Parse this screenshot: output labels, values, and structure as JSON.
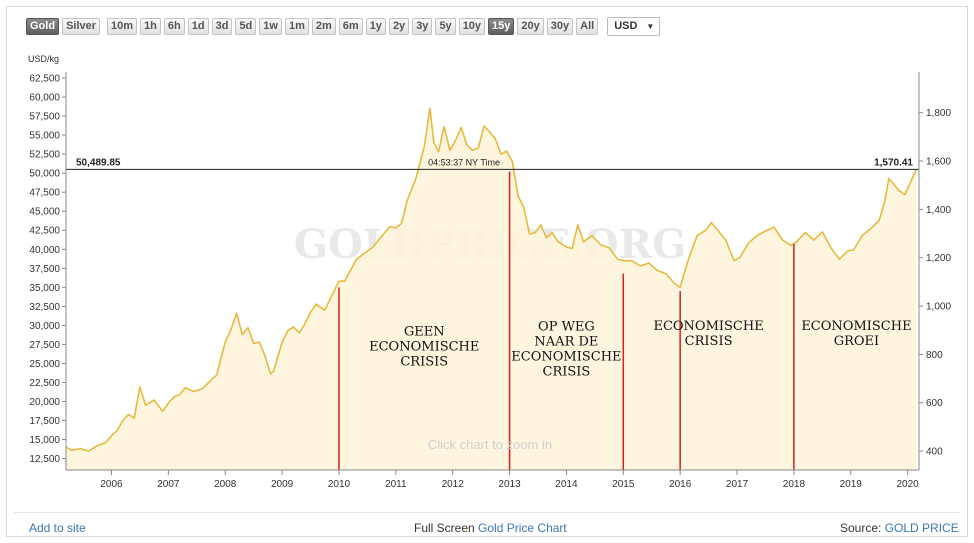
{
  "toolbar": {
    "metals": [
      {
        "label": "Gold",
        "active": true
      },
      {
        "label": "Silver",
        "active": false
      }
    ],
    "ranges": [
      {
        "label": "10m",
        "active": false
      },
      {
        "label": "1h",
        "active": false
      },
      {
        "label": "6h",
        "active": false
      },
      {
        "label": "1d",
        "active": false
      },
      {
        "label": "3d",
        "active": false
      },
      {
        "label": "5d",
        "active": false
      },
      {
        "label": "1w",
        "active": false
      },
      {
        "label": "1m",
        "active": false
      },
      {
        "label": "2m",
        "active": false
      },
      {
        "label": "6m",
        "active": false
      },
      {
        "label": "1y",
        "active": false
      },
      {
        "label": "2y",
        "active": false
      },
      {
        "label": "3y",
        "active": false
      },
      {
        "label": "5y",
        "active": false
      },
      {
        "label": "10y",
        "active": false
      },
      {
        "label": "15y",
        "active": true
      },
      {
        "label": "20y",
        "active": false
      },
      {
        "label": "30y",
        "active": false
      },
      {
        "label": "All",
        "active": false
      }
    ],
    "currency": "USD"
  },
  "footer": {
    "add_to_site": "Add to site",
    "full_screen": "Full Screen",
    "chart_link": "Gold Price Chart",
    "source_label": "Source:",
    "source_link": "GOLD PRICE"
  },
  "chart_data": {
    "type": "area",
    "ylabel": "USD/kg",
    "watermark": "GOLDPRICE.ORG",
    "hint": "Click chart to zoom in",
    "line_color": "#e8b93d",
    "fill_color": "#fdf3d8",
    "marker_color": "#d81f1f",
    "xlim": [
      2005.2,
      2020.2
    ],
    "ylim_left": [
      11000,
      62500
    ],
    "ylim_right": [
      321.5,
      1943.6
    ],
    "x_ticks": [
      2006,
      2007,
      2008,
      2009,
      2010,
      2011,
      2012,
      2013,
      2014,
      2015,
      2016,
      2017,
      2018,
      2019,
      2020
    ],
    "left_ticks": [
      "12,500",
      "15,000",
      "17,500",
      "20,000",
      "22,500",
      "25,000",
      "27,500",
      "30,000",
      "32,500",
      "35,000",
      "37,500",
      "40,000",
      "42,500",
      "45,000",
      "47,500",
      "50,000",
      "52,500",
      "55,000",
      "57,500",
      "60,000",
      "62,500"
    ],
    "left_tick_values": [
      12500,
      15000,
      17500,
      20000,
      22500,
      25000,
      27500,
      30000,
      32500,
      35000,
      37500,
      40000,
      42500,
      45000,
      47500,
      50000,
      52500,
      55000,
      57500,
      60000,
      62500
    ],
    "right_ticks": [
      "400",
      "600",
      "800",
      "1,000",
      "1,200",
      "1,400",
      "1,600",
      "1,800"
    ],
    "right_tick_values": [
      400,
      600,
      800,
      1000,
      1200,
      1400,
      1600,
      1800
    ],
    "crosshair": {
      "value": 50490,
      "left_label": "50,489.85",
      "right_label": "1,570.41",
      "time_label": "04:53:37 NY Time",
      "time_x": 2012.2
    },
    "markers": [
      {
        "x": 2010.0,
        "y": 35000
      },
      {
        "x": 2013.0,
        "y": 50200
      },
      {
        "x": 2015.0,
        "y": 36800
      },
      {
        "x": 2016.0,
        "y": 34500
      },
      {
        "x": 2018.0,
        "y": 40700
      }
    ],
    "annotations": [
      {
        "lines": [
          "GEEN",
          "ECONOMISCHE",
          "CRISIS"
        ],
        "x": 2011.5,
        "y": 28700
      },
      {
        "lines": [
          "OP WEG",
          "NAAR DE",
          "ECONOMISCHE",
          "CRISIS"
        ],
        "x": 2014.0,
        "y": 29300
      },
      {
        "lines": [
          "ECONOMISCHE",
          "CRISIS"
        ],
        "x": 2016.5,
        "y": 29400
      },
      {
        "lines": [
          "ECONOMISCHE",
          "GROEI"
        ],
        "x": 2019.1,
        "y": 29400
      }
    ],
    "series": [
      {
        "x": [
          2005.2,
          2005.3,
          2005.45,
          2005.6,
          2005.75,
          2005.9,
          2006.0,
          2006.1,
          2006.2,
          2006.3,
          2006.4,
          2006.5,
          2006.6,
          2006.75,
          2006.9,
          2007.0,
          2007.1,
          2007.2,
          2007.3,
          2007.45,
          2007.6,
          2007.75,
          2007.85,
          2008.0,
          2008.1,
          2008.2,
          2008.3,
          2008.4,
          2008.5,
          2008.6,
          2008.7,
          2008.8,
          2008.85,
          2009.0,
          2009.1,
          2009.2,
          2009.3,
          2009.4,
          2009.5,
          2009.6,
          2009.75,
          2009.9,
          2010.0,
          2010.1,
          2010.2,
          2010.3,
          2010.45,
          2010.6,
          2010.75,
          2010.9,
          2011.0,
          2011.1,
          2011.2,
          2011.35,
          2011.5,
          2011.6,
          2011.67,
          2011.75,
          2011.85,
          2011.95,
          2012.05,
          2012.15,
          2012.25,
          2012.35,
          2012.45,
          2012.55,
          2012.65,
          2012.75,
          2012.85,
          2012.95,
          2013.05,
          2013.15,
          2013.25,
          2013.35,
          2013.45,
          2013.55,
          2013.65,
          2013.75,
          2013.85,
          2014.0,
          2014.1,
          2014.2,
          2014.3,
          2014.45,
          2014.6,
          2014.75,
          2014.9,
          2015.0,
          2015.15,
          2015.3,
          2015.45,
          2015.6,
          2015.75,
          2015.9,
          2016.0,
          2016.15,
          2016.3,
          2016.45,
          2016.55,
          2016.65,
          2016.8,
          2016.95,
          2017.05,
          2017.2,
          2017.35,
          2017.5,
          2017.65,
          2017.8,
          2017.95,
          2018.05,
          2018.2,
          2018.35,
          2018.5,
          2018.65,
          2018.8,
          2018.95,
          2019.05,
          2019.2,
          2019.35,
          2019.5,
          2019.6,
          2019.67,
          2019.75,
          2019.85,
          2019.95,
          2020.05,
          2020.15
        ],
        "values": [
          14000,
          13600,
          13800,
          13500,
          14200,
          14600,
          15500,
          16200,
          17500,
          18300,
          17800,
          21900,
          19500,
          20200,
          18700,
          19800,
          20600,
          20900,
          21800,
          21300,
          21700,
          22800,
          23500,
          27800,
          29400,
          31600,
          28800,
          29700,
          27600,
          27800,
          26000,
          23600,
          24000,
          27800,
          29300,
          29800,
          29000,
          30200,
          31700,
          32800,
          32000,
          34300,
          35800,
          35800,
          37200,
          38600,
          39500,
          40300,
          41700,
          43000,
          42800,
          43400,
          46400,
          49200,
          53500,
          58500,
          54000,
          52800,
          56100,
          53000,
          54300,
          56000,
          53700,
          53000,
          53300,
          56200,
          55400,
          54500,
          52500,
          52900,
          51500,
          47000,
          45500,
          42000,
          42200,
          43200,
          41500,
          42200,
          41000,
          40300,
          40100,
          43200,
          41000,
          41800,
          40600,
          40200,
          38700,
          38500,
          38500,
          37800,
          38200,
          37200,
          36800,
          35500,
          35000,
          38800,
          41800,
          42500,
          43500,
          42600,
          41200,
          38500,
          38900,
          40800,
          41800,
          42400,
          42900,
          41200,
          40500,
          41000,
          42200,
          41200,
          42300,
          40200,
          38700,
          39800,
          39900,
          41800,
          42700,
          43800,
          46400,
          49300,
          48600,
          47700,
          47200,
          48800,
          50490
        ]
      }
    ]
  }
}
